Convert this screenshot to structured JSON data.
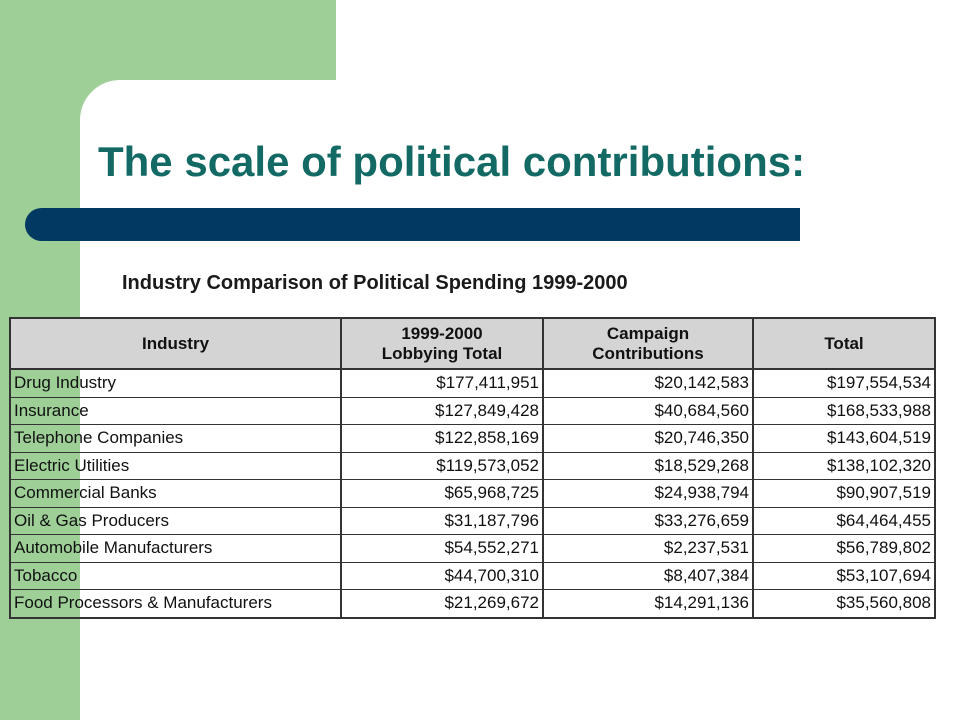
{
  "slide": {
    "title": "The scale of political contributions:"
  },
  "table": {
    "caption": "Industry Comparison of Political Spending 1999-2000",
    "headers": [
      {
        "line1": "Industry",
        "line2": ""
      },
      {
        "line1": "1999-2000",
        "line2": "Lobbying Total"
      },
      {
        "line1": "Campaign",
        "line2": "Contributions"
      },
      {
        "line1": "Total",
        "line2": ""
      }
    ],
    "rows": [
      {
        "industry": "Drug Industry",
        "lobbying": "$177,411,951",
        "contributions": "$20,142,583",
        "total": "$197,554,534"
      },
      {
        "industry": "Insurance",
        "lobbying": "$127,849,428",
        "contributions": "$40,684,560",
        "total": "$168,533,988"
      },
      {
        "industry": "Telephone Companies",
        "lobbying": "$122,858,169",
        "contributions": "$20,746,350",
        "total": "$143,604,519"
      },
      {
        "industry": "Electric Utilities",
        "lobbying": "$119,573,052",
        "contributions": "$18,529,268",
        "total": "$138,102,320"
      },
      {
        "industry": "Commercial Banks",
        "lobbying": "$65,968,725",
        "contributions": "$24,938,794",
        "total": "$90,907,519"
      },
      {
        "industry": "Oil & Gas Producers",
        "lobbying": "$31,187,796",
        "contributions": "$33,276,659",
        "total": "$64,464,455"
      },
      {
        "industry": "Automobile Manufacturers",
        "lobbying": "$54,552,271",
        "contributions": "$2,237,531",
        "total": "$56,789,802"
      },
      {
        "industry": "Tobacco",
        "lobbying": "$44,700,310",
        "contributions": "$8,407,384",
        "total": "$53,107,694"
      },
      {
        "industry": "Food Processors & Manufacturers",
        "lobbying": "$21,269,672",
        "contributions": "$14,291,136",
        "total": "$35,560,808"
      }
    ]
  },
  "colors": {
    "accent_green": "#9dcf97",
    "title_teal": "#136a64",
    "bar_navy": "#003a63",
    "header_gray": "#d4d4d4"
  }
}
